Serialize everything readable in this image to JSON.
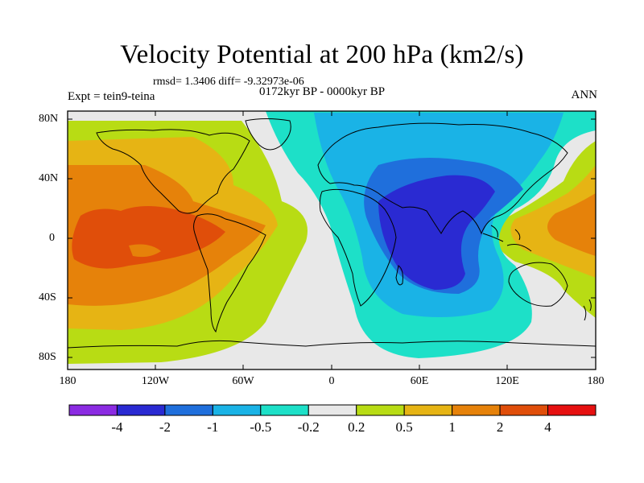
{
  "map": {
    "title": "Velocity Potential at 200 hPa (km2/s)",
    "stats_text": "rmsd= 1.3406 diff= -9.32973e-06",
    "experiment": "Expt = tein9-teina",
    "period": "0172kyr BP - 0000kyr BP",
    "season": "ANN",
    "lat_labels": [
      "80N",
      "40N",
      "0",
      "40S",
      "80S"
    ],
    "lon_labels": [
      "180",
      "120W",
      "60W",
      "0",
      "60E",
      "120E",
      "180"
    ],
    "colorbar": {
      "levels": [
        "-4",
        "-2",
        "-1",
        "-0.5",
        "-0.2",
        "0.2",
        "0.5",
        "1",
        "2",
        "4"
      ],
      "colors": [
        "#8b2be2",
        "#2a2ad2",
        "#1f6fdc",
        "#1ab3e6",
        "#1de0c8",
        "#e8e8e8",
        "#b8dc14",
        "#e6b414",
        "#e6820a",
        "#e04e0a",
        "#e61010"
      ]
    }
  }
}
